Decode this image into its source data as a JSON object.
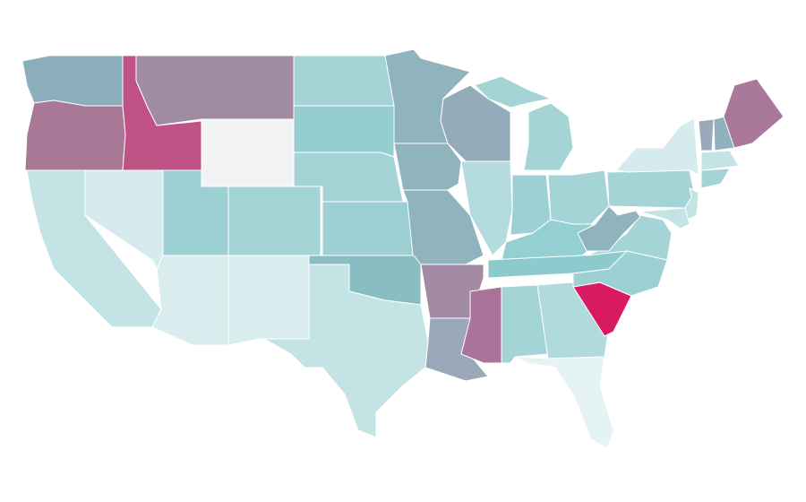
{
  "map": {
    "type": "choropleth",
    "border_color": "#ffffff",
    "background": "#ffffff",
    "regions": [
      {
        "fill": "#8aafba"
      },
      {
        "fill": "#a87896"
      },
      {
        "fill": "#c05385"
      },
      {
        "fill": "#a18ba3"
      },
      {
        "fill": "#f2f3f4"
      },
      {
        "fill": "#a5d4d7"
      },
      {
        "fill": "#96cdd0"
      },
      {
        "fill": "#a5d4d7"
      },
      {
        "fill": "#9dd0d3"
      },
      {
        "fill": "#8fb4bd"
      },
      {
        "fill": "#8fb4bd"
      },
      {
        "fill": "#8fb4bd"
      },
      {
        "fill": "#94abba"
      },
      {
        "fill": "#b4dcde"
      },
      {
        "fill": "#a5d4d7"
      },
      {
        "fill": "#a5d4d7"
      },
      {
        "fill": "#9dd0d3"
      },
      {
        "fill": "#a5d4d7"
      },
      {
        "fill": "#94cfd2"
      },
      {
        "fill": "#8ccacd"
      },
      {
        "fill": "#a38aa4"
      },
      {
        "fill": "#9aa8b9"
      },
      {
        "fill": "#aa739a"
      },
      {
        "fill": "#a5d4d7"
      },
      {
        "fill": "#b0dadb"
      },
      {
        "fill": "#e6f3f4"
      },
      {
        "fill": "#d81b60"
      },
      {
        "fill": "#9dd0d3"
      },
      {
        "fill": "#a5d4d7"
      },
      {
        "fill": "#8fb4bd"
      },
      {
        "fill": "#a5d4d7"
      },
      {
        "fill": "#d6ebed"
      },
      {
        "fill": "#c4e3e5"
      },
      {
        "fill": "#c4e3e5"
      },
      {
        "fill": "#9aa8b9"
      },
      {
        "fill": "#8fb0bc"
      },
      {
        "fill": "#aa789a"
      },
      {
        "fill": "#c4e3e5"
      },
      {
        "fill": "#a5d4d7"
      },
      {
        "fill": "#c4e3e5"
      },
      {
        "fill": "#d6ebed"
      },
      {
        "fill": "#9dd0d3"
      },
      {
        "fill": "#a5d4d7"
      },
      {
        "fill": "#d9ecee"
      },
      {
        "fill": "#d9ecee"
      },
      {
        "fill": "#8abdc2"
      },
      {
        "fill": "#c4e3e5"
      }
    ]
  }
}
